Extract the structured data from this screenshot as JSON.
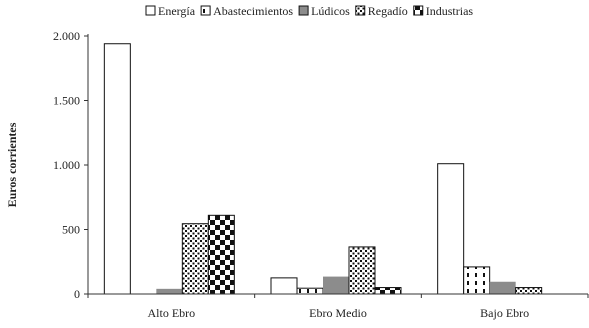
{
  "chart_data": {
    "type": "bar",
    "title": "",
    "xlabel": "",
    "ylabel": "Euros corrientes",
    "ylim": [
      0,
      2000
    ],
    "yticks": [
      0,
      500,
      1000,
      1500,
      2000
    ],
    "ytick_labels": [
      "0",
      "500",
      "1.000",
      "1.500",
      "2.000"
    ],
    "categories": [
      "Alto Ebro",
      "Ebro Medio",
      "Bajo Ebro"
    ],
    "legend_position": "top",
    "grid": false,
    "series": [
      {
        "name": "Energía",
        "values": [
          1940,
          125,
          1010
        ],
        "pattern": "white"
      },
      {
        "name": "Abastecimientos",
        "values": [
          0,
          45,
          210
        ],
        "pattern": "dashes"
      },
      {
        "name": "Lúdicos",
        "values": [
          40,
          135,
          95
        ],
        "pattern": "gray"
      },
      {
        "name": "Regadío",
        "values": [
          545,
          365,
          50
        ],
        "pattern": "dots"
      },
      {
        "name": "Industrias",
        "values": [
          610,
          50,
          0
        ],
        "pattern": "checker"
      }
    ],
    "colors": {
      "axis": "#333333",
      "gray_fill": "#8c8c8c",
      "outline": "#111111"
    }
  }
}
